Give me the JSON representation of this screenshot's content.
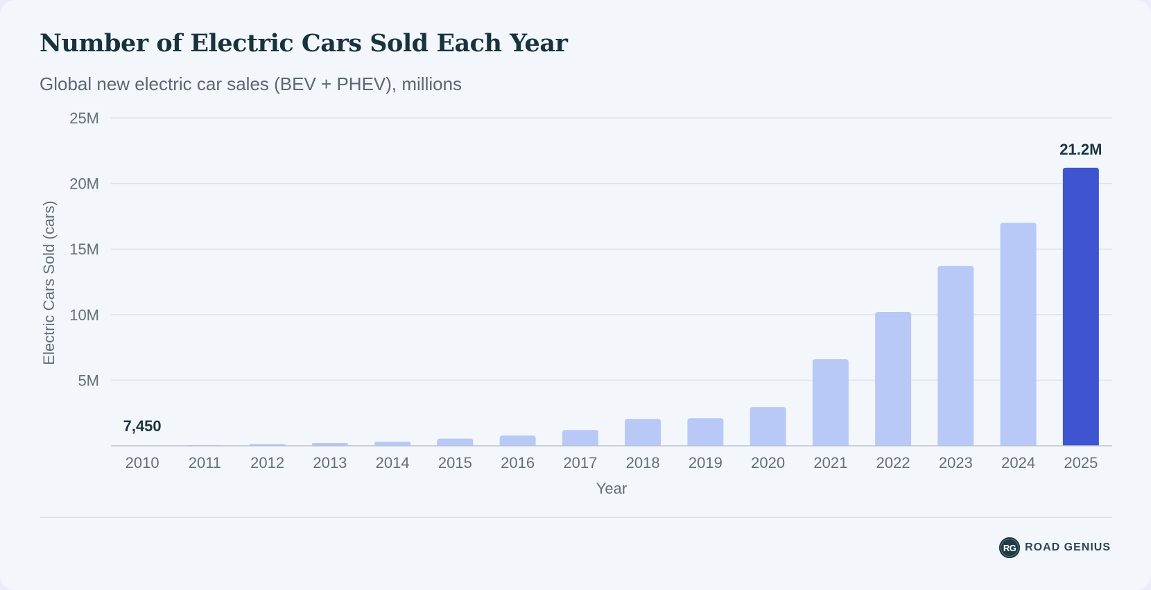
{
  "header": {
    "title": "Number of Electric Cars Sold Each Year",
    "subtitle": "Global new electric car sales (BEV + PHEV), millions"
  },
  "colors": {
    "bar": "#b8c9f7",
    "highlight": "#3f54d1",
    "gridline": "#dde4ec",
    "axis_text": "#646e78",
    "label_text": "#1c3440"
  },
  "chart_data": {
    "type": "bar",
    "categories": [
      "2010",
      "2011",
      "2012",
      "2013",
      "2014",
      "2015",
      "2016",
      "2017",
      "2018",
      "2019",
      "2020",
      "2021",
      "2022",
      "2023",
      "2024",
      "2025"
    ],
    "values": [
      7450,
      50000,
      130000,
      210000,
      320000,
      550000,
      780000,
      1200000,
      2050000,
      2100000,
      2950000,
      6600000,
      10200000,
      13700000,
      17000000,
      21200000
    ],
    "xlabel": "Year",
    "ylabel": "Electric Cars Sold (cars)",
    "ylim": [
      0,
      25000000
    ],
    "yticks": [
      5000000,
      10000000,
      15000000,
      20000000,
      25000000
    ],
    "ytick_labels": [
      "5M",
      "10M",
      "15M",
      "20M",
      "25M"
    ],
    "data_labels": [
      {
        "category": "2010",
        "text": "7,450"
      },
      {
        "category": "2025",
        "text": "21.2M"
      }
    ],
    "highlight_category": "2025",
    "grid": true,
    "legend": "none"
  },
  "footer": {
    "brand_mark": "RG",
    "brand_name": "ROAD GENIUS"
  }
}
